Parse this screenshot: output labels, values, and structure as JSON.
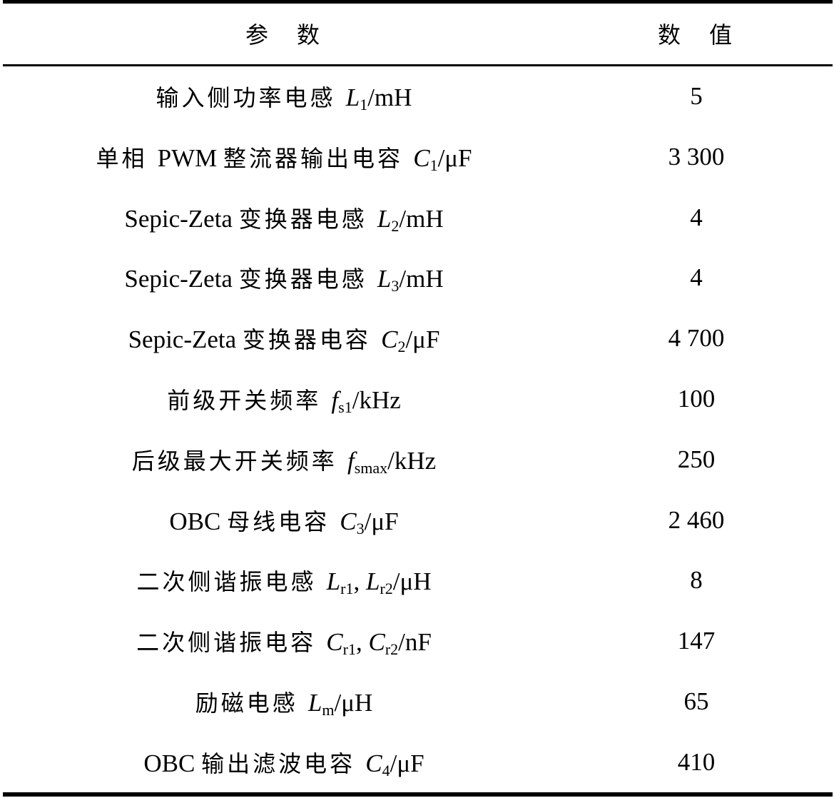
{
  "table": {
    "headers": [
      "参　数",
      "数　值"
    ],
    "rows": [
      {
        "label": [
          {
            "t": "输入侧功率电感 ",
            "c": 1
          },
          {
            "t": "L",
            "i": 1
          },
          {
            "t": "1",
            "s": 1
          },
          {
            "t": "/mH"
          }
        ],
        "value": "5"
      },
      {
        "label": [
          {
            "t": "单相 ",
            "c": 1
          },
          {
            "t": "PWM "
          },
          {
            "t": "整流器输出电容 ",
            "c": 1
          },
          {
            "t": "C",
            "i": 1
          },
          {
            "t": "1",
            "s": 1
          },
          {
            "t": "/μF"
          }
        ],
        "value": "3 300"
      },
      {
        "label": [
          {
            "t": "Sepic-Zeta "
          },
          {
            "t": "变换器电感 ",
            "c": 1
          },
          {
            "t": "L",
            "i": 1
          },
          {
            "t": "2",
            "s": 1
          },
          {
            "t": "/mH"
          }
        ],
        "value": "4"
      },
      {
        "label": [
          {
            "t": "Sepic-Zeta "
          },
          {
            "t": "变换器电感 ",
            "c": 1
          },
          {
            "t": "L",
            "i": 1
          },
          {
            "t": "3",
            "s": 1
          },
          {
            "t": "/mH"
          }
        ],
        "value": "4"
      },
      {
        "label": [
          {
            "t": "Sepic-Zeta "
          },
          {
            "t": "变换器电容 ",
            "c": 1
          },
          {
            "t": "C",
            "i": 1
          },
          {
            "t": "2",
            "s": 1
          },
          {
            "t": "/μF"
          }
        ],
        "value": "4 700"
      },
      {
        "label": [
          {
            "t": "前级开关频率 ",
            "c": 1
          },
          {
            "t": "f",
            "i": 1
          },
          {
            "t": "s1",
            "s": 1
          },
          {
            "t": "/kHz"
          }
        ],
        "value": "100"
      },
      {
        "label": [
          {
            "t": "后级最大开关频率 ",
            "c": 1
          },
          {
            "t": "f",
            "i": 1
          },
          {
            "t": "smax",
            "s": 1
          },
          {
            "t": "/kHz"
          }
        ],
        "value": "250"
      },
      {
        "label": [
          {
            "t": "OBC "
          },
          {
            "t": "母线电容 ",
            "c": 1
          },
          {
            "t": "C",
            "i": 1
          },
          {
            "t": "3",
            "s": 1
          },
          {
            "t": "/μF"
          }
        ],
        "value": "2 460"
      },
      {
        "label": [
          {
            "t": "二次侧谐振电感 ",
            "c": 1
          },
          {
            "t": "L",
            "i": 1
          },
          {
            "t": "r1",
            "s": 1
          },
          {
            "t": ", "
          },
          {
            "t": "L",
            "i": 1
          },
          {
            "t": "r2",
            "s": 1
          },
          {
            "t": "/μH"
          }
        ],
        "value": "8"
      },
      {
        "label": [
          {
            "t": "二次侧谐振电容 ",
            "c": 1
          },
          {
            "t": "C",
            "i": 1
          },
          {
            "t": "r1",
            "s": 1
          },
          {
            "t": ", "
          },
          {
            "t": "C",
            "i": 1
          },
          {
            "t": "r2",
            "s": 1
          },
          {
            "t": "/nF"
          }
        ],
        "value": "147"
      },
      {
        "label": [
          {
            "t": "励磁电感 ",
            "c": 1
          },
          {
            "t": "L",
            "i": 1
          },
          {
            "t": "m",
            "s": 1
          },
          {
            "t": "/μH"
          }
        ],
        "value": "65"
      },
      {
        "label": [
          {
            "t": "OBC "
          },
          {
            "t": "输出滤波电容 ",
            "c": 1
          },
          {
            "t": "C",
            "i": 1
          },
          {
            "t": "4",
            "s": 1
          },
          {
            "t": "/μF"
          }
        ],
        "value": "410"
      }
    ]
  }
}
